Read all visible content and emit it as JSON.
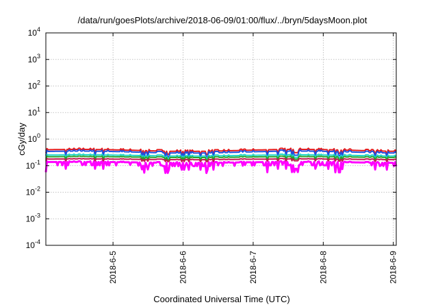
{
  "chart_data": {
    "type": "line",
    "title": "/data/run/goesPlots/archive/2018-06-09/01:00/flux/../bryn/5daysMoon.plot",
    "xlabel": "Coordinated Universal Time (UTC)",
    "ylabel": "cGy/day",
    "y_scale": "log",
    "ylim": [
      0.0001,
      10000
    ],
    "y_ticks": [
      {
        "base": "10",
        "exp": "-4",
        "value": 0.0001
      },
      {
        "base": "10",
        "exp": "-3",
        "value": 0.001
      },
      {
        "base": "10",
        "exp": "-2",
        "value": 0.01
      },
      {
        "base": "10",
        "exp": "-1",
        "value": 0.1
      },
      {
        "base": "10",
        "exp": "0",
        "value": 1
      },
      {
        "base": "10",
        "exp": "1",
        "value": 10
      },
      {
        "base": "10",
        "exp": "2",
        "value": 100
      },
      {
        "base": "10",
        "exp": "3",
        "value": 1000
      },
      {
        "base": "10",
        "exp": "4",
        "value": 10000
      }
    ],
    "xlim": [
      "2018-06-04 01:00",
      "2018-06-09 01:00"
    ],
    "x_ticks": [
      {
        "label": "2018-6-5",
        "date": "2018-06-05 00:00"
      },
      {
        "label": "2018-6-6",
        "date": "2018-06-06 00:00"
      },
      {
        "label": "2018-6-7",
        "date": "2018-06-07 00:00"
      },
      {
        "label": "2018-6-8",
        "date": "2018-06-08 00:00"
      },
      {
        "label": "2018-6-9",
        "date": "2018-06-09 00:00"
      }
    ],
    "grid": true,
    "legend": "none",
    "series": [
      {
        "color": "#e41a1c",
        "level": 0.36,
        "amplitude": 0.1,
        "dip": 0.75,
        "order": 2
      },
      {
        "color": "#1f4fe0",
        "level": 0.31,
        "amplitude": 0.1,
        "dip": 0.7,
        "order": 3
      },
      {
        "color": "#1fd6c8",
        "level": 0.235,
        "amplitude": 0.06,
        "dip": 0.8,
        "order": 4
      },
      {
        "color": "#2aa02a",
        "level": 0.205,
        "amplitude": 0.05,
        "dip": 0.8,
        "order": 5
      },
      {
        "color": "#c0194f",
        "level": 0.17,
        "amplitude": 0.04,
        "dip": 0.85,
        "order": 6
      },
      {
        "color": "#ff00ff",
        "level": 0.13,
        "amplitude": 0.05,
        "dip": 0.55,
        "order": 1
      }
    ]
  }
}
